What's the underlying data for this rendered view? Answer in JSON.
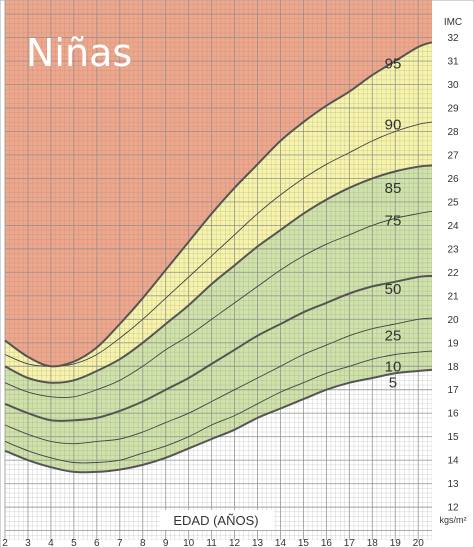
{
  "chart_data": {
    "type": "line",
    "title": "Niñas",
    "xlabel": "EDAD (AÑOS)",
    "ylabel": "IMC",
    "yunit": "kgs/m²",
    "xlim": [
      2,
      20.6
    ],
    "ylim": [
      10.6,
      33.6
    ],
    "x_ticks": [
      2,
      3,
      4,
      5,
      6,
      7,
      8,
      9,
      10,
      11,
      12,
      13,
      14,
      15,
      16,
      17,
      18,
      19,
      20
    ],
    "y_ticks": [
      12,
      13,
      14,
      15,
      16,
      17,
      18,
      19,
      20,
      21,
      22,
      23,
      24,
      25,
      26,
      27,
      28,
      29,
      30,
      31,
      32
    ],
    "grid": true,
    "colors": {
      "obese": "#f0a68a",
      "overweight": "#f7f4a9",
      "healthy": "#cfe2a8",
      "lower": "#ffffff",
      "grid": "#8f8f8f",
      "thick_line": "#555555",
      "thin_line": "#444444"
    },
    "x": [
      2,
      3,
      4,
      5,
      6,
      7,
      8,
      9,
      10,
      11,
      12,
      13,
      14,
      15,
      16,
      17,
      18,
      19,
      20,
      20.6
    ],
    "series": [
      {
        "name": "5",
        "values": [
          14.4,
          14.0,
          13.7,
          13.5,
          13.5,
          13.6,
          13.8,
          14.1,
          14.5,
          14.9,
          15.3,
          15.8,
          16.2,
          16.6,
          17.0,
          17.3,
          17.5,
          17.7,
          17.8,
          17.85
        ]
      },
      {
        "name": "10",
        "values": [
          14.8,
          14.4,
          14.1,
          13.9,
          13.9,
          14.0,
          14.3,
          14.6,
          15.0,
          15.5,
          15.9,
          16.4,
          16.9,
          17.3,
          17.7,
          18.0,
          18.3,
          18.5,
          18.6,
          18.65
        ]
      },
      {
        "name": "25",
        "values": [
          15.5,
          15.1,
          14.8,
          14.7,
          14.8,
          14.9,
          15.2,
          15.6,
          16.0,
          16.5,
          17.0,
          17.5,
          18.0,
          18.5,
          18.9,
          19.3,
          19.6,
          19.8,
          20.0,
          20.05
        ]
      },
      {
        "name": "50",
        "values": [
          16.4,
          16.0,
          15.7,
          15.7,
          15.8,
          16.1,
          16.5,
          17.0,
          17.5,
          18.1,
          18.7,
          19.3,
          19.8,
          20.3,
          20.7,
          21.1,
          21.4,
          21.6,
          21.8,
          21.85
        ]
      },
      {
        "name": "75",
        "values": [
          17.3,
          16.9,
          16.7,
          16.7,
          17.0,
          17.4,
          18.0,
          18.7,
          19.3,
          20.0,
          20.7,
          21.4,
          22.1,
          22.7,
          23.2,
          23.6,
          24.0,
          24.3,
          24.5,
          24.6
        ]
      },
      {
        "name": "85",
        "values": [
          18.0,
          17.5,
          17.3,
          17.4,
          17.8,
          18.3,
          19.0,
          19.8,
          20.6,
          21.5,
          22.3,
          23.1,
          23.8,
          24.5,
          25.1,
          25.6,
          26.0,
          26.3,
          26.5,
          26.55
        ]
      },
      {
        "name": "90",
        "values": [
          18.5,
          18.1,
          18.0,
          18.1,
          18.5,
          19.2,
          20.0,
          20.9,
          21.8,
          22.7,
          23.6,
          24.5,
          25.3,
          26.0,
          26.6,
          27.1,
          27.6,
          28.0,
          28.3,
          28.4
        ]
      },
      {
        "name": "95",
        "values": [
          19.1,
          18.4,
          18.0,
          18.2,
          18.8,
          19.8,
          20.9,
          22.1,
          23.3,
          24.5,
          25.6,
          26.6,
          27.6,
          28.4,
          29.1,
          29.7,
          30.4,
          31.0,
          31.6,
          31.8
        ]
      }
    ],
    "thick_series": [
      "5",
      "50",
      "85",
      "95"
    ],
    "label_positions": {
      "95": {
        "x": 18.9,
        "y": 30.9
      },
      "90": {
        "x": 18.9,
        "y": 28.3
      },
      "85": {
        "x": 18.9,
        "y": 25.6
      },
      "75": {
        "x": 18.9,
        "y": 24.2
      },
      "50": {
        "x": 18.9,
        "y": 21.3
      },
      "25": {
        "x": 18.9,
        "y": 19.3
      },
      "10": {
        "x": 18.9,
        "y": 18.0
      },
      "5": {
        "x": 18.9,
        "y": 17.3
      }
    }
  }
}
